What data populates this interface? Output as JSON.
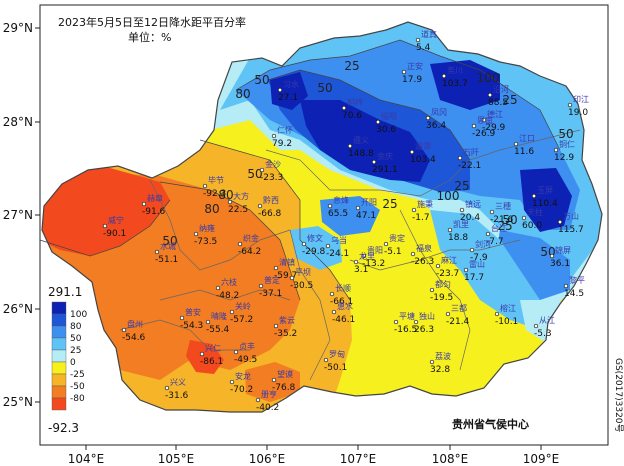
{
  "title": {
    "line1": "2023年5月5日至12日降水距平百分率",
    "line2": "单位：%"
  },
  "footer": {
    "agency": "贵州省气侯中心",
    "map_code": "GS(2017)3320号"
  },
  "axes": {
    "lon_ticks": [
      "104°E",
      "105°E",
      "106°E",
      "107°E",
      "108°E",
      "109°E"
    ],
    "lat_ticks": [
      "29°N",
      "28°N",
      "27°N",
      "26°N",
      "25°N"
    ]
  },
  "legend": {
    "max_label": "291.1",
    "min_label": "-92.3",
    "bands": [
      {
        "label": "100",
        "color": "#0d22b4"
      },
      {
        "label": "80",
        "color": "#1d56d6"
      },
      {
        "label": "50",
        "color": "#3d8ff0"
      },
      {
        "label": "25",
        "color": "#5fc3f6"
      },
      {
        "label": "0",
        "color": "#b6ecf6"
      },
      {
        "label": "-25",
        "color": "#f6f01e"
      },
      {
        "label": "-50",
        "color": "#f6b428"
      },
      {
        "label": "-80",
        "color": "#f27d22"
      },
      {
        "label": "",
        "color": "#f24a1e"
      }
    ]
  },
  "isolines": [
    "25",
    "50",
    "80",
    "100",
    "50",
    "25",
    "80",
    "100",
    "50",
    "25",
    "50",
    "80",
    "25",
    "50",
    "25",
    "50",
    "50"
  ],
  "stations": [
    {
      "name": "道真",
      "value": "5.4"
    },
    {
      "name": "习水",
      "value": "27.1"
    },
    {
      "name": "正安",
      "value": "17.9"
    },
    {
      "name": "务川",
      "value": "103.7"
    },
    {
      "name": "沿河",
      "value": "88.5"
    },
    {
      "name": "印江",
      "value": "19.0"
    },
    {
      "name": "桐梓",
      "value": "70.6"
    },
    {
      "name": "绥阳",
      "value": "30.6"
    },
    {
      "name": "凤冈",
      "value": "36.4"
    },
    {
      "name": "德江",
      "value": "-29.9"
    },
    {
      "name": "思南",
      "value": "-26.9"
    },
    {
      "name": "仁怀",
      "value": "79.2"
    },
    {
      "name": "遵义",
      "value": "148.8"
    },
    {
      "name": "湄潭",
      "value": "103.4"
    },
    {
      "name": "石阡",
      "value": "-22.1"
    },
    {
      "name": "江口",
      "value": "11.6"
    },
    {
      "name": "铜仁",
      "value": "12.9"
    },
    {
      "name": "金沙",
      "value": "-23.3"
    },
    {
      "name": "余庆",
      "value": "291.1"
    },
    {
      "name": "玉屏",
      "value": "110.4"
    },
    {
      "name": "万山",
      "value": "115.7"
    },
    {
      "name": "毕节",
      "value": "-92.3"
    },
    {
      "name": "大方",
      "value": "22.5"
    },
    {
      "name": "黔西",
      "value": "-66.8"
    },
    {
      "name": "息烽",
      "value": "65.5"
    },
    {
      "name": "开阳",
      "value": "47.1"
    },
    {
      "name": "施秉",
      "value": "-1.7"
    },
    {
      "name": "镇远",
      "value": "20.4"
    },
    {
      "name": "三穗",
      "value": "-21.6"
    },
    {
      "name": "天柱",
      "value": "60.0"
    },
    {
      "name": "赫章",
      "value": "-91.6"
    },
    {
      "name": "威宁",
      "value": "-90.1"
    },
    {
      "name": "纳雍",
      "value": "-73.5"
    },
    {
      "name": "织金",
      "value": "-64.2"
    },
    {
      "name": "修文",
      "value": "-29.8"
    },
    {
      "name": "乌当",
      "value": "-24.1"
    },
    {
      "name": "贵定",
      "value": "-5.1"
    },
    {
      "name": "凯里",
      "value": "18.8"
    },
    {
      "name": "台江",
      "value": "-7.7"
    },
    {
      "name": "剑河",
      "value": "-7.9"
    },
    {
      "name": "锦屏",
      "value": "36.1"
    },
    {
      "name": "水城",
      "value": "-51.1"
    },
    {
      "name": "六枝",
      "value": "-48.2"
    },
    {
      "name": "普定",
      "value": "-37.1"
    },
    {
      "name": "清镇",
      "value": "-59.7"
    },
    {
      "name": "贵阳",
      "value": "-13.2"
    },
    {
      "name": "龙里",
      "value": "3.1"
    },
    {
      "name": "福泉",
      "value": "-26.3"
    },
    {
      "name": "麻江",
      "value": "-23.7"
    },
    {
      "name": "雷山",
      "value": "17.7"
    },
    {
      "name": "黎平",
      "value": "14.5"
    },
    {
      "name": "关岭",
      "value": "-57.2"
    },
    {
      "name": "平坝",
      "value": "-30.5"
    },
    {
      "name": "长顺",
      "value": "-66.1"
    },
    {
      "name": "惠水",
      "value": "-46.1"
    },
    {
      "name": "都匀",
      "value": "-19.5"
    },
    {
      "name": "三都",
      "value": "-21.4"
    },
    {
      "name": "榕江",
      "value": "-10.1"
    },
    {
      "name": "从江",
      "value": "-5.3"
    },
    {
      "name": "盘州",
      "value": "-54.6"
    },
    {
      "name": "普安",
      "value": "-54.3"
    },
    {
      "name": "晴隆",
      "value": "-55.4"
    },
    {
      "name": "紫云",
      "value": "-35.2"
    },
    {
      "name": "平塘",
      "value": "-16.5"
    },
    {
      "name": "独山",
      "value": "26.3"
    },
    {
      "name": "兴仁",
      "value": "-86.1"
    },
    {
      "name": "贞丰",
      "value": "-49.5"
    },
    {
      "name": "罗甸",
      "value": "-50.1"
    },
    {
      "name": "荔波",
      "value": "32.8"
    },
    {
      "name": "兴义",
      "value": "-31.6"
    },
    {
      "name": "安龙",
      "value": "-70.2"
    },
    {
      "name": "望谟",
      "value": "-76.8"
    },
    {
      "name": "册亨",
      "value": "-40.2"
    }
  ]
}
